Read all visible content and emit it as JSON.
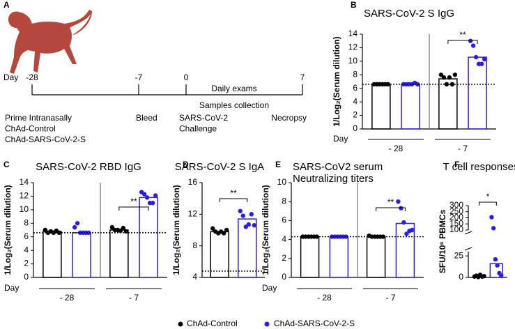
{
  "panel_labels": [
    "A",
    "B",
    "C",
    "D",
    "E",
    "F"
  ],
  "timeline": {
    "day_label": "Day",
    "days": [
      "-28",
      "-7",
      "0",
      "7"
    ],
    "events": [
      [
        "Prime Intranasally",
        "ChAd-Control",
        "ChAd-SARS-CoV-2-S"
      ],
      [
        "Bleed"
      ],
      [
        "SARS-CoV-2",
        "Challenge"
      ],
      [
        "Necropsy"
      ]
    ],
    "periods": [
      "Daily exams",
      "Samples collection"
    ]
  },
  "legend": [
    {
      "name": "ChAd-Control",
      "color": "#000000"
    },
    {
      "name": "ChAd-SARS-CoV-2-S",
      "color": "#2b1ee0"
    }
  ],
  "chart_data": [
    {
      "type": "bar",
      "title": "SARS-CoV-2 S IgG",
      "ylabel": "1/Log₂(Serum dilution)",
      "x_label": "Day",
      "categories": [
        "- 28",
        "- 7"
      ],
      "ylim": [
        0,
        14
      ],
      "yticks": [
        0,
        2,
        4,
        6,
        8,
        10,
        12,
        14
      ],
      "threshold": 6.6,
      "series": [
        {
          "values": [
            6.6,
            7.4
          ],
          "points": [
            [
              6.6,
              6.6,
              6.6,
              6.6,
              6.6,
              6.6
            ],
            [
              8.0,
              7.6,
              6.6,
              7.6,
              6.6,
              8.0
            ]
          ]
        },
        {
          "values": [
            6.6,
            10.6
          ],
          "points": [
            [
              6.6,
              6.6,
              6.6,
              6.6,
              6.8,
              6.6
            ],
            [
              13.0,
              12.3,
              10.6,
              9.6,
              9.6,
              10.3
            ]
          ]
        }
      ],
      "significance": {
        "label": "**",
        "category": 1
      }
    },
    {
      "type": "bar",
      "title": "SARS-CoV-2 RBD IgG",
      "ylabel": "1/Log₂(Serum dilution)",
      "x_label": "Day",
      "categories": [
        "- 28",
        "- 7"
      ],
      "ylim": [
        0,
        14
      ],
      "yticks": [
        0,
        2,
        4,
        6,
        8,
        10,
        12,
        14
      ],
      "threshold": 6.6,
      "series": [
        {
          "values": [
            6.8,
            7.0
          ],
          "points": [
            [
              7.0,
              6.6,
              6.8,
              6.6,
              6.9,
              6.6
            ],
            [
              7.4,
              7.0,
              7.0,
              6.9,
              7.3,
              6.8
            ]
          ]
        },
        {
          "values": [
            6.6,
            11.8
          ],
          "points": [
            [
              7.4,
              8.0,
              6.6,
              6.6,
              6.6,
              6.6
            ],
            [
              12.6,
              12.3,
              11.8,
              11.0,
              11.0,
              12.1
            ]
          ]
        }
      ],
      "significance": {
        "label": "**",
        "category": 1
      }
    },
    {
      "type": "bar",
      "title": "SARS-CoV-2 S IgA",
      "ylabel": "1/Log₂(Serum dilution)",
      "ylim": [
        4,
        16
      ],
      "yticks": [
        4,
        8,
        12,
        16
      ],
      "threshold": 4.8,
      "series": [
        {
          "values": [
            9.8
          ],
          "points": [
            [
              10.2,
              9.8,
              9.6,
              9.8,
              9.6,
              10.0
            ]
          ]
        },
        {
          "values": [
            11.4
          ],
          "points": [
            [
              12.4,
              11.8,
              10.4,
              10.7,
              12.0,
              10.6
            ]
          ]
        }
      ],
      "significance": {
        "label": "**",
        "category": 0
      }
    },
    {
      "type": "bar",
      "title": "SARS-CoV2 serum",
      "subtitle": "Neutralizing titers",
      "ylabel": "1/Log₂(Serum dilution)",
      "x_label": "Day",
      "categories": [
        "- 28",
        "- 7"
      ],
      "ylim": [
        0,
        10
      ],
      "yticks": [
        0,
        2,
        4,
        6,
        8,
        10
      ],
      "threshold": 4.3,
      "series": [
        {
          "values": [
            4.3,
            4.3
          ],
          "points": [
            [
              4.3,
              4.3,
              4.3,
              4.3,
              4.3,
              4.3
            ],
            [
              4.4,
              4.3,
              4.3,
              4.3,
              4.3,
              4.3
            ]
          ]
        },
        {
          "values": [
            4.3,
            5.7
          ],
          "points": [
            [
              4.3,
              4.3,
              4.3,
              4.3,
              4.3,
              4.3
            ],
            [
              8.0,
              7.3,
              5.8,
              4.6,
              4.9,
              5.0
            ]
          ]
        }
      ],
      "significance": {
        "label": "**",
        "category": 1
      }
    },
    {
      "type": "bar",
      "title": "T cell responses",
      "ylabel": "SFU/10⁶ PBMCs",
      "segments": [
        {
          "ylim": [
            0,
            30
          ],
          "yticks": [
            0,
            25
          ]
        },
        {
          "ylim": [
            100,
            300
          ],
          "yticks": [
            100,
            150,
            200,
            250,
            300
          ]
        }
      ],
      "series": [
        {
          "values": [
            1.5
          ],
          "points": [
            [
              1,
              2,
              0.5,
              3,
              1,
              1.5
            ]
          ]
        },
        {
          "values": [
            16
          ],
          "points": [
            [
              205,
              115,
              21,
              14,
              5,
              2
            ]
          ]
        }
      ],
      "significance": {
        "label": "*",
        "category": 0
      }
    }
  ]
}
